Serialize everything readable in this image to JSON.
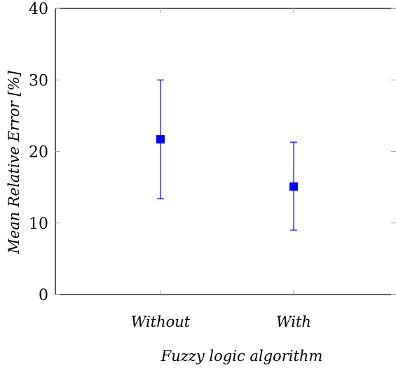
{
  "chart_data": {
    "type": "scatter",
    "title": "",
    "xlabel": "Fuzzy logic algorithm",
    "ylabel": "Mean Relative Error [%]",
    "categories": [
      "Without",
      "With"
    ],
    "values": [
      21.7,
      15.1
    ],
    "error_low": [
      13.4,
      9.0
    ],
    "error_high": [
      30.0,
      21.3
    ],
    "ylim": [
      0,
      40
    ],
    "yticks": [
      "0",
      "10",
      "20",
      "30",
      "40"
    ],
    "grid": false,
    "marker": "square",
    "color": "#0000ff"
  }
}
